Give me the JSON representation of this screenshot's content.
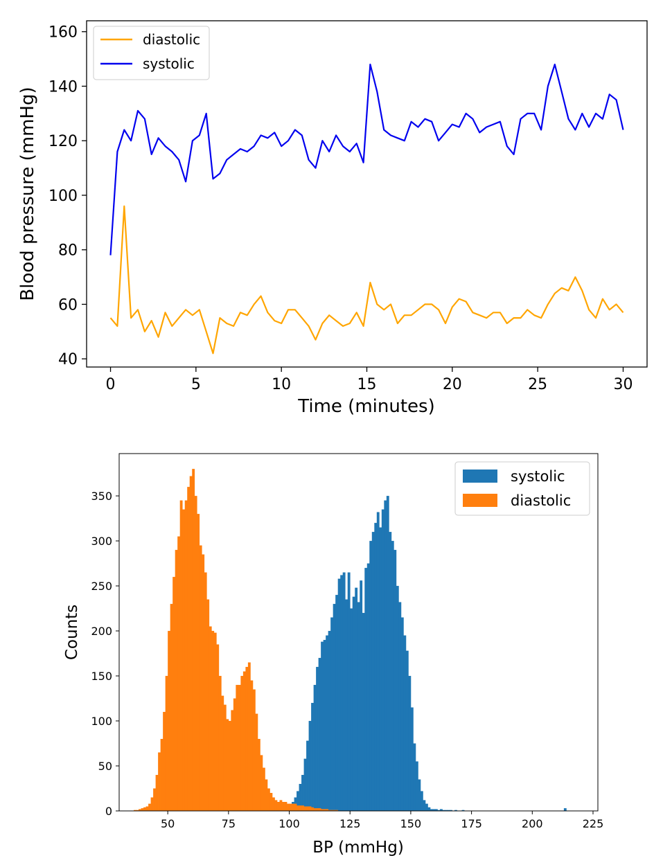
{
  "chart_data": [
    {
      "type": "line",
      "xlabel": "Time (minutes)",
      "ylabel": "Blood pressure (mmHg)",
      "xlim": [
        -1.4,
        31.4
      ],
      "ylim": [
        37,
        164
      ],
      "x_ticks": [
        0,
        5,
        10,
        15,
        20,
        25,
        30
      ],
      "y_ticks": [
        40,
        60,
        80,
        100,
        120,
        140,
        160
      ],
      "grid": false,
      "legend_position": "top-left",
      "series": [
        {
          "name": "diastolic",
          "color": "#ffa500",
          "x": [
            0,
            0.4,
            0.8,
            1.2,
            1.6,
            2.0,
            2.4,
            2.8,
            3.2,
            3.6,
            4.0,
            4.4,
            4.8,
            5.2,
            5.6,
            6.0,
            6.4,
            6.8,
            7.2,
            7.6,
            8.0,
            8.4,
            8.8,
            9.2,
            9.6,
            10.0,
            10.4,
            10.8,
            11.2,
            11.6,
            12.0,
            12.4,
            12.8,
            13.2,
            13.6,
            14.0,
            14.4,
            14.8,
            15.2,
            15.6,
            16.0,
            16.4,
            16.8,
            17.2,
            17.6,
            18.0,
            18.4,
            18.8,
            19.2,
            19.6,
            20.0,
            20.4,
            20.8,
            21.2,
            21.6,
            22.0,
            22.4,
            22.8,
            23.2,
            23.6,
            24.0,
            24.4,
            24.8,
            25.2,
            25.6,
            26.0,
            26.4,
            26.8,
            27.2,
            27.6,
            28.0,
            28.4,
            28.8,
            29.2,
            29.6,
            30.0
          ],
          "values": [
            55,
            52,
            96,
            55,
            58,
            50,
            54,
            48,
            57,
            52,
            55,
            58,
            56,
            58,
            50,
            42,
            55,
            53,
            52,
            57,
            56,
            60,
            63,
            57,
            54,
            53,
            58,
            58,
            55,
            52,
            47,
            53,
            56,
            54,
            52,
            53,
            57,
            52,
            68,
            60,
            58,
            60,
            53,
            56,
            56,
            58,
            60,
            60,
            58,
            53,
            59,
            62,
            61,
            57,
            56,
            55,
            57,
            57,
            53,
            55,
            55,
            58,
            56,
            55,
            60,
            64,
            66,
            65,
            70,
            65,
            58,
            55,
            62,
            58,
            60,
            57
          ]
        },
        {
          "name": "systolic",
          "color": "#0000ee",
          "x": [
            0,
            0.4,
            0.8,
            1.2,
            1.6,
            2.0,
            2.4,
            2.8,
            3.2,
            3.6,
            4.0,
            4.4,
            4.8,
            5.2,
            5.6,
            6.0,
            6.4,
            6.8,
            7.2,
            7.6,
            8.0,
            8.4,
            8.8,
            9.2,
            9.6,
            10.0,
            10.4,
            10.8,
            11.2,
            11.6,
            12.0,
            12.4,
            12.8,
            13.2,
            13.6,
            14.0,
            14.4,
            14.8,
            15.2,
            15.6,
            16.0,
            16.4,
            16.8,
            17.2,
            17.6,
            18.0,
            18.4,
            18.8,
            19.2,
            19.6,
            20.0,
            20.4,
            20.8,
            21.2,
            21.6,
            22.0,
            22.4,
            22.8,
            23.2,
            23.6,
            24.0,
            24.4,
            24.8,
            25.2,
            25.6,
            26.0,
            26.4,
            26.8,
            27.2,
            27.6,
            28.0,
            28.4,
            28.8,
            29.2,
            29.6,
            30.0
          ],
          "values": [
            78,
            116,
            124,
            120,
            131,
            128,
            115,
            121,
            118,
            116,
            113,
            105,
            120,
            122,
            130,
            106,
            108,
            113,
            115,
            117,
            116,
            118,
            122,
            121,
            123,
            118,
            120,
            124,
            122,
            113,
            110,
            120,
            116,
            122,
            118,
            116,
            119,
            112,
            148,
            138,
            124,
            122,
            121,
            120,
            127,
            125,
            128,
            127,
            120,
            123,
            126,
            125,
            130,
            128,
            123,
            125,
            126,
            127,
            118,
            115,
            128,
            130,
            130,
            124,
            140,
            148,
            138,
            128,
            124,
            130,
            125,
            130,
            128,
            137,
            135,
            124
          ]
        }
      ]
    },
    {
      "type": "histogram",
      "xlabel": "BP (mmHg)",
      "ylabel": "Counts",
      "xlim": [
        30,
        227
      ],
      "ylim": [
        0,
        397
      ],
      "x_ticks": [
        50,
        75,
        100,
        125,
        150,
        175,
        200,
        225
      ],
      "y_ticks": [
        0,
        50,
        100,
        150,
        200,
        250,
        300,
        350
      ],
      "grid": false,
      "legend_position": "top-right",
      "bin_start": 36,
      "bin_width": 1,
      "series": [
        {
          "name": "systolic",
          "color": "#1f77b4",
          "values": [
            0,
            0,
            0,
            0,
            0,
            0,
            0,
            0,
            0,
            0,
            0,
            0,
            0,
            0,
            0,
            0,
            0,
            0,
            0,
            0,
            0,
            0,
            0,
            0,
            0,
            0,
            0,
            0,
            0,
            0,
            0,
            0,
            0,
            0,
            0,
            0,
            0,
            0,
            0,
            0,
            0,
            0,
            0,
            0,
            0,
            0,
            0,
            0,
            0,
            0,
            0,
            0,
            0,
            0,
            0,
            0,
            0,
            0,
            0,
            0,
            0,
            0,
            0,
            2,
            6,
            10,
            15,
            22,
            30,
            40,
            58,
            78,
            100,
            120,
            140,
            160,
            170,
            188,
            190,
            195,
            200,
            215,
            230,
            240,
            258,
            262,
            265,
            235,
            265,
            225,
            238,
            248,
            232,
            256,
            220,
            270,
            275,
            300,
            310,
            320,
            332,
            315,
            335,
            345,
            350,
            310,
            300,
            290,
            250,
            232,
            215,
            195,
            178,
            150,
            115,
            75,
            55,
            35,
            22,
            12,
            8,
            4,
            2,
            2,
            2,
            1,
            2,
            1,
            1,
            1,
            1,
            0,
            1,
            0,
            0,
            1,
            0,
            0,
            0,
            0,
            0,
            0,
            0,
            0,
            0,
            0,
            0,
            0,
            0,
            0,
            0,
            0,
            0,
            0,
            0,
            0,
            0,
            0,
            0,
            0,
            0,
            0,
            0,
            0,
            0,
            0,
            0,
            0,
            0,
            0,
            0,
            0,
            0,
            0,
            0,
            0,
            0,
            3
          ]
        },
        {
          "name": "diastolic",
          "color": "#ff7f0e",
          "values": [
            1,
            1,
            2,
            3,
            4,
            5,
            8,
            15,
            25,
            40,
            65,
            80,
            110,
            150,
            200,
            230,
            260,
            290,
            305,
            345,
            335,
            345,
            360,
            372,
            380,
            350,
            330,
            295,
            285,
            265,
            235,
            205,
            200,
            198,
            185,
            150,
            128,
            118,
            102,
            100,
            112,
            125,
            140,
            140,
            150,
            155,
            160,
            165,
            145,
            135,
            108,
            80,
            62,
            48,
            35,
            25,
            20,
            15,
            12,
            10,
            12,
            10,
            10,
            8,
            8,
            8,
            8,
            6,
            6,
            6,
            5,
            5,
            5,
            4,
            3,
            3,
            3,
            2,
            2,
            2,
            1,
            1,
            1,
            1,
            0,
            0,
            0,
            0,
            0,
            0
          ]
        }
      ]
    }
  ]
}
